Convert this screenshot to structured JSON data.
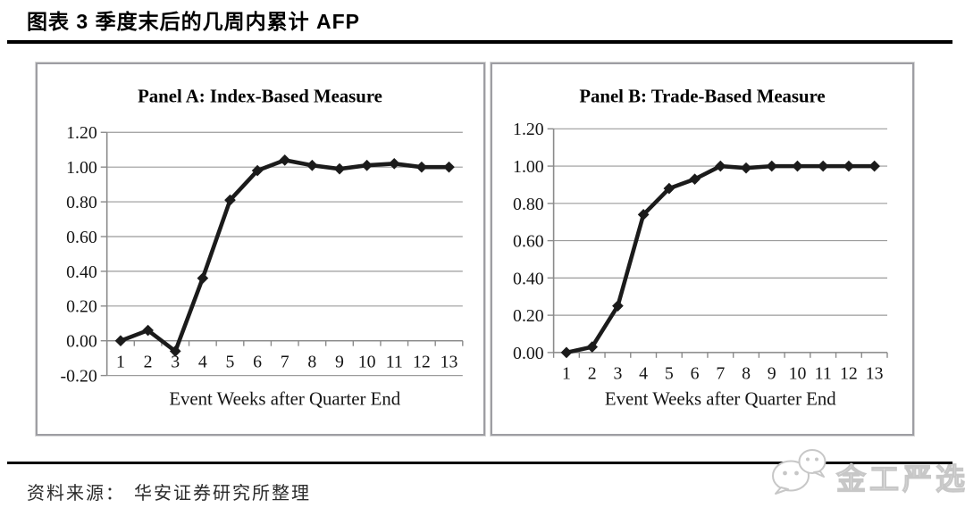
{
  "figure": {
    "title": "图表 3 季度末后的几周内累计 AFP",
    "source_label": "资料来源：",
    "source_text": "华安证券研究所整理",
    "watermark_text": "金工严选",
    "watermark_icon": "wechat-icon"
  },
  "chart_data": [
    {
      "type": "line",
      "title": "Panel A: Index-Based Measure",
      "xlabel": "Event Weeks after Quarter End",
      "categories": [
        1,
        2,
        3,
        4,
        5,
        6,
        7,
        8,
        9,
        10,
        11,
        12,
        13
      ],
      "values": [
        0.0,
        0.06,
        -0.06,
        0.36,
        0.81,
        0.98,
        1.04,
        1.01,
        0.99,
        1.01,
        1.02,
        1.0,
        1.0
      ],
      "ylim": [
        -0.2,
        1.2
      ],
      "ytick_step": 0.2,
      "ytick_labels": [
        "1.20",
        "1.00",
        "0.80",
        "0.60",
        "0.40",
        "0.20",
        "0.00",
        "-0.20"
      ],
      "grid": true,
      "legend": false,
      "marker": "diamond",
      "line_color": "#1b1b1b"
    },
    {
      "type": "line",
      "title": "Panel B: Trade-Based Measure",
      "xlabel": "Event Weeks after Quarter End",
      "categories": [
        1,
        2,
        3,
        4,
        5,
        6,
        7,
        8,
        9,
        10,
        11,
        12,
        13
      ],
      "values": [
        0.0,
        0.03,
        0.25,
        0.74,
        0.88,
        0.93,
        1.0,
        0.99,
        1.0,
        1.0,
        1.0,
        1.0,
        1.0
      ],
      "ylim": [
        0.0,
        1.2
      ],
      "ytick_step": 0.2,
      "ytick_labels": [
        "1.20",
        "1.00",
        "0.80",
        "0.60",
        "0.40",
        "0.20",
        "0.00"
      ],
      "grid": true,
      "legend": false,
      "marker": "diamond",
      "line_color": "#1b1b1b"
    }
  ],
  "colors": {
    "grid": "#9b9b9b",
    "axis": "#8a8a8a",
    "panel_border": "#9e9ea3",
    "text": "#151515",
    "rule": "#000000",
    "watermark": "#c7c7c7",
    "line": "#1b1b1b"
  }
}
